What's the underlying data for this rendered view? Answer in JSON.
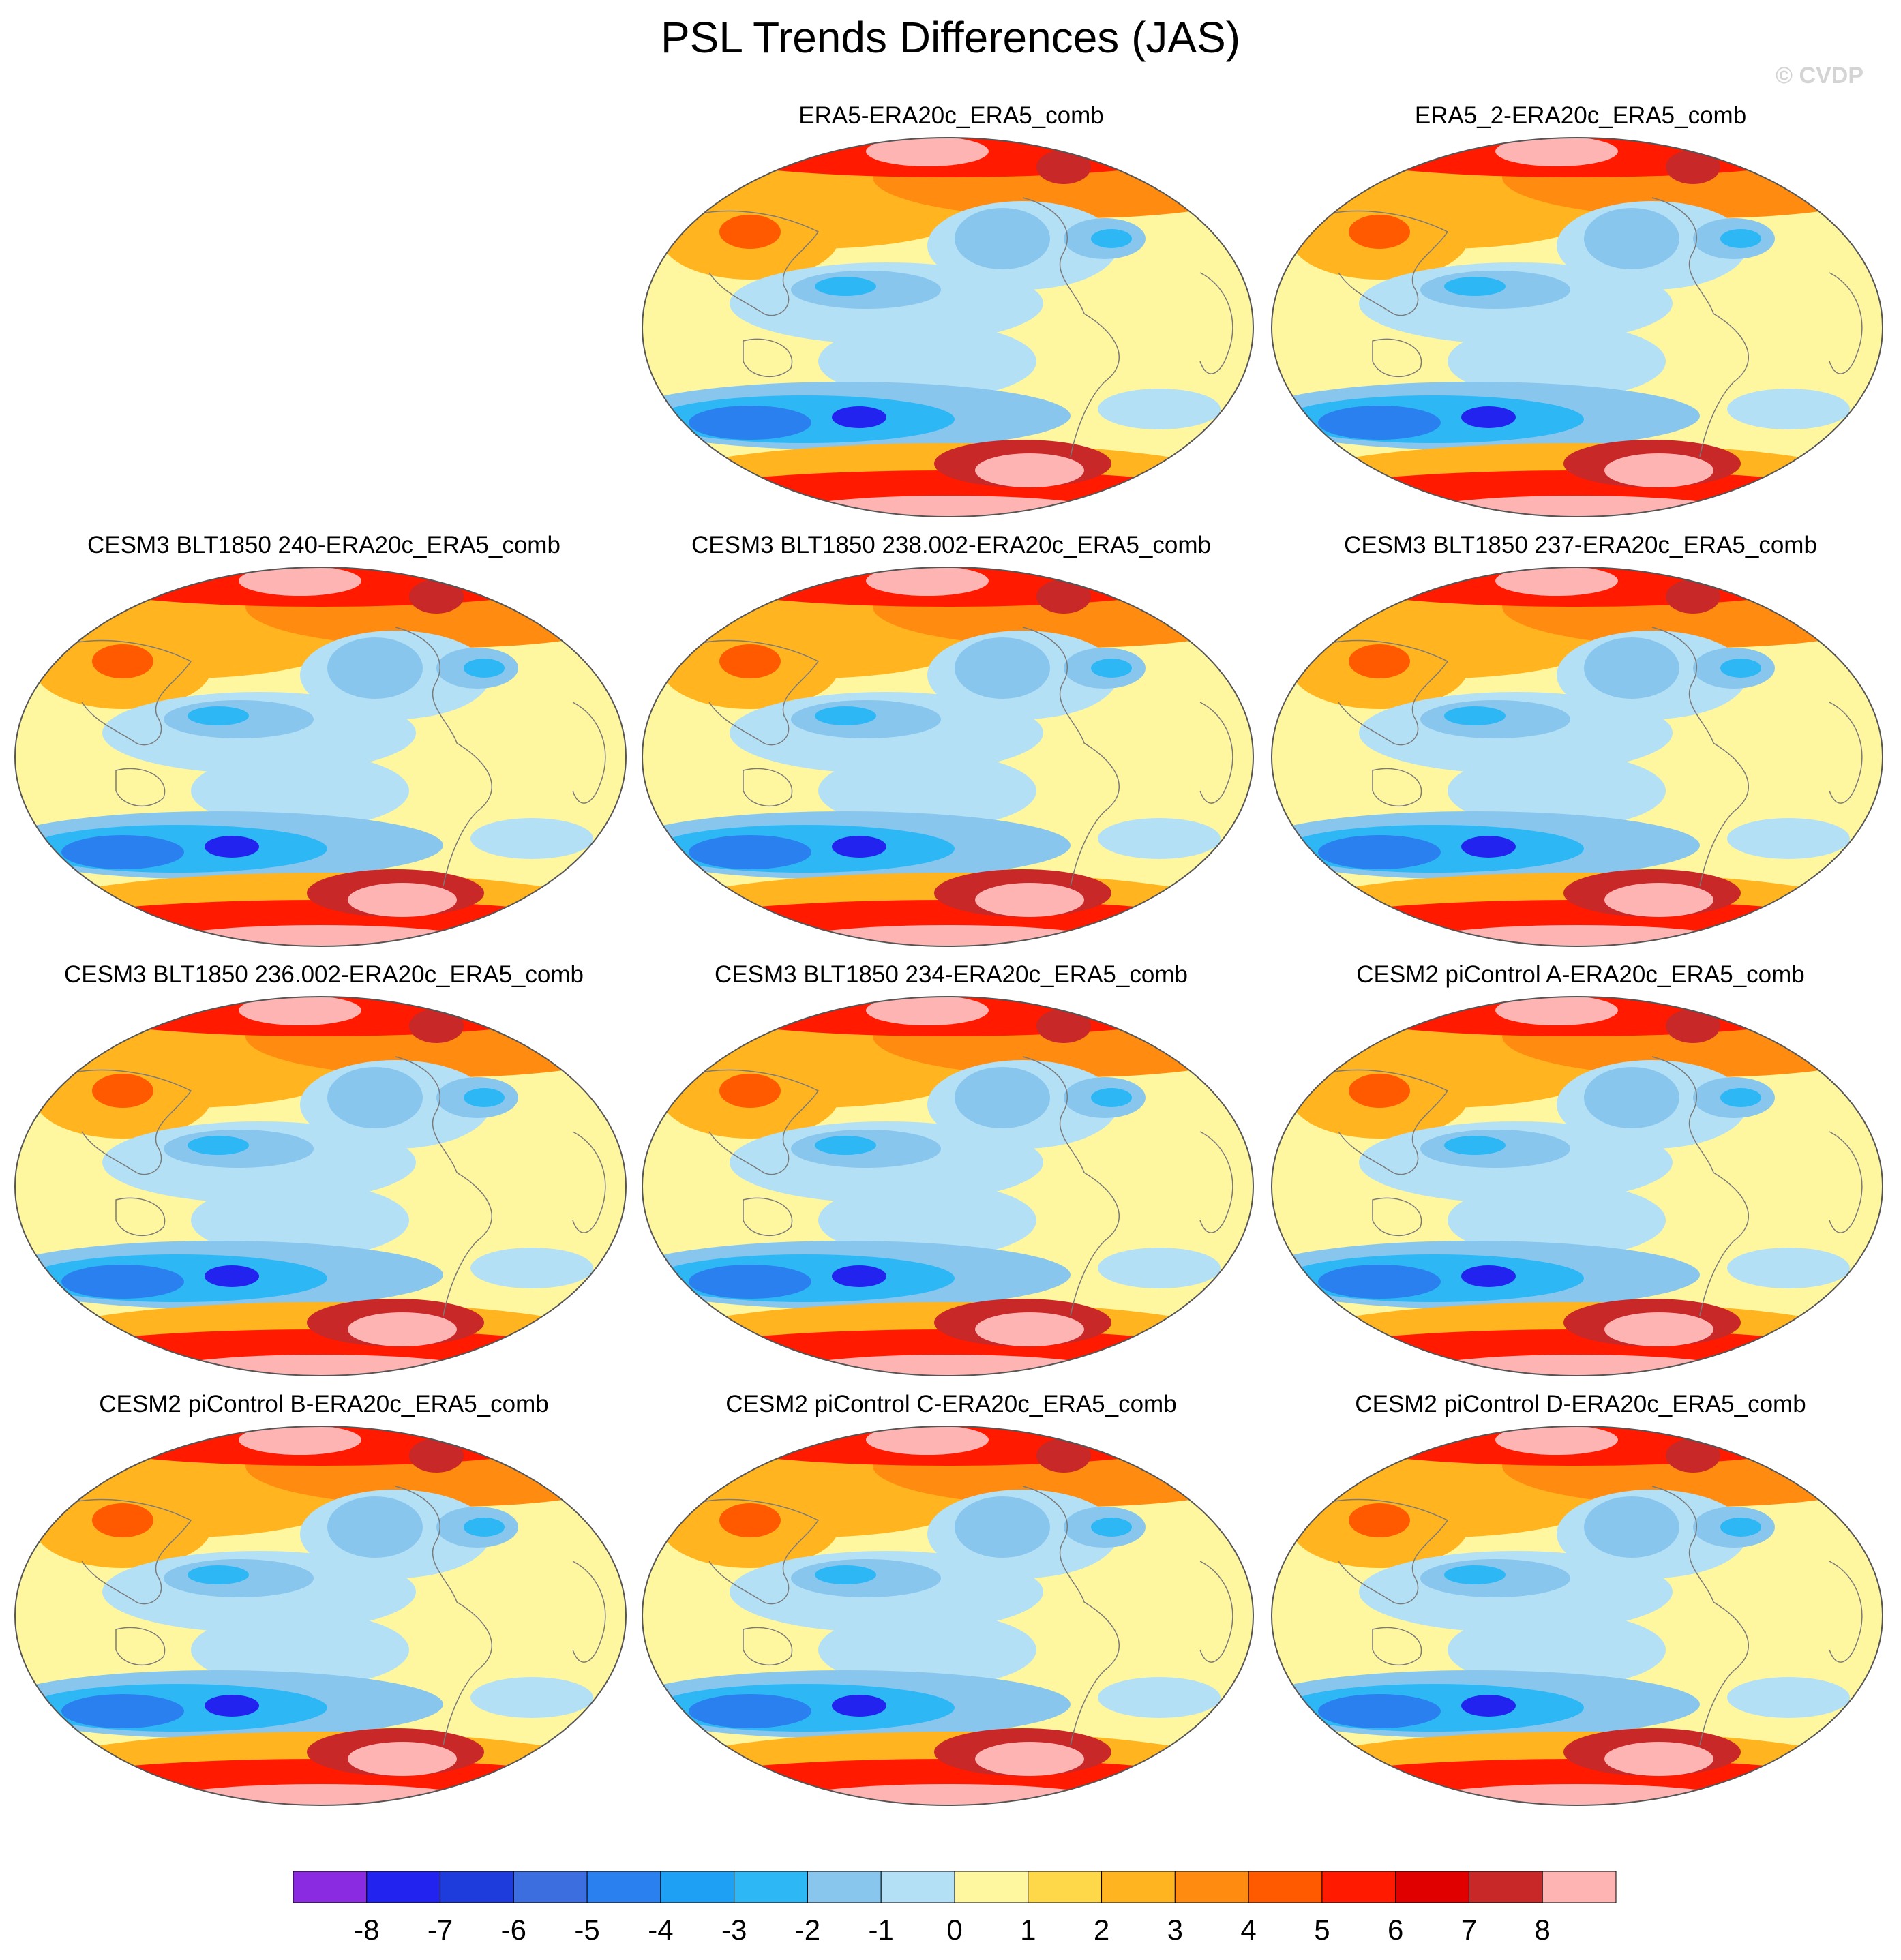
{
  "title": "PSL Trends Differences (JAS)",
  "watermark": "© CVDP",
  "panels": [
    {
      "label": "ERA5-ERA20c_ERA5_comb",
      "row": 0,
      "col": 1
    },
    {
      "label": "ERA5_2-ERA20c_ERA5_comb",
      "row": 0,
      "col": 2
    },
    {
      "label": "CESM3 BLT1850 240-ERA20c_ERA5_comb",
      "row": 1,
      "col": 0
    },
    {
      "label": "CESM3 BLT1850 238.002-ERA20c_ERA5_comb",
      "row": 1,
      "col": 1
    },
    {
      "label": "CESM3 BLT1850 237-ERA20c_ERA5_comb",
      "row": 1,
      "col": 2
    },
    {
      "label": "CESM3 BLT1850 236.002-ERA20c_ERA5_comb",
      "row": 2,
      "col": 0
    },
    {
      "label": "CESM3 BLT1850 234-ERA20c_ERA5_comb",
      "row": 2,
      "col": 1
    },
    {
      "label": "CESM2 piControl A-ERA20c_ERA5_comb",
      "row": 2,
      "col": 2
    },
    {
      "label": "CESM2 piControl B-ERA20c_ERA5_comb",
      "row": 3,
      "col": 0
    },
    {
      "label": "CESM2 piControl C-ERA20c_ERA5_comb",
      "row": 3,
      "col": 1
    },
    {
      "label": "CESM2 piControl D-ERA20c_ERA5_comb",
      "row": 3,
      "col": 2
    }
  ],
  "colorbar": {
    "colors": [
      "#8a2be2",
      "#2323f0",
      "#1e3cdc",
      "#3c6ee0",
      "#2b80f0",
      "#1ea0f5",
      "#2db8f5",
      "#88c6ee",
      "#b4e0f6",
      "#fff7a0",
      "#ffd84a",
      "#ffb420",
      "#ff8c10",
      "#ff5a00",
      "#ff1a00",
      "#e00000",
      "#c82828",
      "#ffb4b4"
    ],
    "labels": [
      "-8",
      "-7",
      "-6",
      "-5",
      "-4",
      "-3",
      "-2",
      "-1",
      "0",
      "1",
      "2",
      "3",
      "4",
      "5",
      "6",
      "7",
      "8"
    ]
  },
  "map_colors": {
    "background": "#fff7a0",
    "light_yellow": "#fff7a0",
    "yellow": "#ffd84a",
    "orange": "#ffb420",
    "dark_orange": "#ff8c10",
    "red_orange": "#ff5a00",
    "red": "#ff1a00",
    "dark_red": "#c82828",
    "pink": "#ffb4b4",
    "light_blue": "#b4e0f6",
    "blue1": "#88c6ee",
    "blue2": "#2db8f5",
    "blue3": "#2b80f0",
    "blue4": "#2323f0",
    "coast": "#7a7a7a"
  }
}
